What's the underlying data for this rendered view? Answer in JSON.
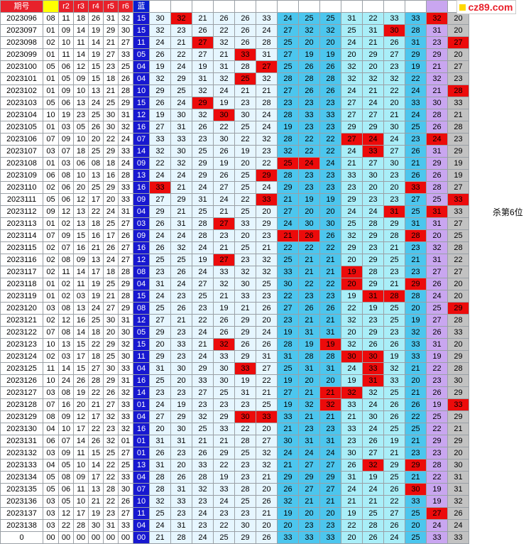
{
  "header": [
    "期号",
    "",
    "r2",
    "r3",
    "r4",
    "r5",
    "r6",
    "蓝",
    "",
    "",
    "",
    "",
    "",
    "",
    "",
    "",
    "",
    "",
    "",
    "",
    "",
    "",
    "",
    ""
  ],
  "logo": "cz89.com",
  "note": "杀第6位",
  "note_row": "2023113",
  "rows": [
    [
      "2023096",
      "08",
      "11",
      "18",
      "26",
      "31",
      "32",
      "15",
      "30",
      "32",
      "21",
      "26",
      "26",
      "33",
      "24",
      "25",
      "25",
      "31",
      "22",
      "33",
      "33",
      "32",
      "20"
    ],
    [
      "2023097",
      "01",
      "09",
      "14",
      "19",
      "29",
      "30",
      "15",
      "32",
      "23",
      "26",
      "22",
      "26",
      "24",
      "27",
      "32",
      "32",
      "25",
      "31",
      "30",
      "28",
      "31",
      "20"
    ],
    [
      "2023098",
      "02",
      "10",
      "11",
      "14",
      "21",
      "27",
      "11",
      "24",
      "21",
      "27",
      "32",
      "26",
      "28",
      "25",
      "20",
      "20",
      "24",
      "21",
      "26",
      "31",
      "23",
      "27"
    ],
    [
      "2023099",
      "01",
      "11",
      "14",
      "19",
      "27",
      "33",
      "05",
      "26",
      "22",
      "27",
      "21",
      "33",
      "31",
      "27",
      "19",
      "19",
      "20",
      "29",
      "27",
      "29",
      "29",
      "20"
    ],
    [
      "2023100",
      "05",
      "06",
      "12",
      "15",
      "23",
      "25",
      "04",
      "19",
      "24",
      "19",
      "31",
      "28",
      "27",
      "25",
      "26",
      "26",
      "32",
      "20",
      "23",
      "19",
      "21",
      "27"
    ],
    [
      "2023101",
      "01",
      "05",
      "09",
      "15",
      "18",
      "26",
      "04",
      "32",
      "29",
      "31",
      "32",
      "25",
      "32",
      "28",
      "28",
      "28",
      "32",
      "32",
      "32",
      "22",
      "32",
      "23"
    ],
    [
      "2023102",
      "01",
      "09",
      "10",
      "13",
      "21",
      "28",
      "10",
      "29",
      "25",
      "32",
      "24",
      "21",
      "21",
      "27",
      "26",
      "26",
      "24",
      "21",
      "22",
      "24",
      "21",
      "28"
    ],
    [
      "2023103",
      "05",
      "06",
      "13",
      "24",
      "25",
      "29",
      "15",
      "26",
      "24",
      "29",
      "19",
      "23",
      "28",
      "23",
      "23",
      "23",
      "27",
      "24",
      "20",
      "33",
      "30",
      "33"
    ],
    [
      "2023104",
      "10",
      "19",
      "23",
      "25",
      "30",
      "31",
      "12",
      "19",
      "30",
      "32",
      "30",
      "30",
      "24",
      "28",
      "33",
      "33",
      "27",
      "27",
      "21",
      "24",
      "28",
      "21"
    ],
    [
      "2023105",
      "01",
      "03",
      "05",
      "26",
      "30",
      "32",
      "16",
      "27",
      "31",
      "26",
      "22",
      "25",
      "24",
      "19",
      "23",
      "23",
      "29",
      "29",
      "30",
      "25",
      "26",
      "28"
    ],
    [
      "2023106",
      "07",
      "09",
      "10",
      "20",
      "22",
      "24",
      "07",
      "33",
      "33",
      "23",
      "30",
      "22",
      "32",
      "28",
      "22",
      "22",
      "27",
      "24",
      "24",
      "23",
      "24",
      "23"
    ],
    [
      "2023107",
      "03",
      "07",
      "18",
      "25",
      "29",
      "33",
      "14",
      "32",
      "30",
      "25",
      "26",
      "19",
      "23",
      "32",
      "22",
      "22",
      "24",
      "33",
      "27",
      "26",
      "31",
      "29"
    ],
    [
      "2023108",
      "01",
      "03",
      "06",
      "08",
      "18",
      "24",
      "09",
      "22",
      "32",
      "29",
      "19",
      "20",
      "22",
      "25",
      "24",
      "24",
      "21",
      "27",
      "30",
      "21",
      "29",
      "19"
    ],
    [
      "2023109",
      "06",
      "08",
      "10",
      "13",
      "16",
      "28",
      "13",
      "24",
      "24",
      "29",
      "26",
      "25",
      "29",
      "28",
      "23",
      "23",
      "33",
      "30",
      "23",
      "26",
      "26",
      "19"
    ],
    [
      "2023110",
      "02",
      "06",
      "20",
      "25",
      "29",
      "33",
      "16",
      "33",
      "21",
      "24",
      "27",
      "25",
      "24",
      "29",
      "23",
      "23",
      "23",
      "20",
      "20",
      "33",
      "28",
      "27"
    ],
    [
      "2023111",
      "05",
      "06",
      "12",
      "17",
      "20",
      "33",
      "09",
      "27",
      "29",
      "31",
      "24",
      "22",
      "33",
      "21",
      "19",
      "19",
      "29",
      "23",
      "23",
      "27",
      "25",
      "33"
    ],
    [
      "2023112",
      "09",
      "12",
      "13",
      "22",
      "24",
      "31",
      "04",
      "29",
      "21",
      "25",
      "21",
      "25",
      "20",
      "27",
      "20",
      "20",
      "24",
      "24",
      "31",
      "25",
      "31",
      "33"
    ],
    [
      "2023113",
      "01",
      "02",
      "13",
      "18",
      "25",
      "27",
      "03",
      "26",
      "31",
      "28",
      "27",
      "33",
      "29",
      "24",
      "30",
      "30",
      "25",
      "28",
      "29",
      "31",
      "31",
      "27"
    ],
    [
      "2023114",
      "07",
      "09",
      "15",
      "16",
      "17",
      "26",
      "09",
      "24",
      "24",
      "28",
      "23",
      "20",
      "23",
      "21",
      "26",
      "26",
      "32",
      "29",
      "28",
      "28",
      "20",
      "25"
    ],
    [
      "2023115",
      "02",
      "07",
      "16",
      "21",
      "26",
      "27",
      "16",
      "26",
      "32",
      "24",
      "21",
      "25",
      "21",
      "22",
      "22",
      "22",
      "29",
      "23",
      "21",
      "23",
      "32",
      "28"
    ],
    [
      "2023116",
      "02",
      "08",
      "09",
      "13",
      "24",
      "27",
      "12",
      "25",
      "25",
      "19",
      "27",
      "23",
      "32",
      "25",
      "21",
      "21",
      "20",
      "29",
      "25",
      "21",
      "31",
      "22"
    ],
    [
      "2023117",
      "02",
      "11",
      "14",
      "17",
      "18",
      "28",
      "08",
      "23",
      "26",
      "24",
      "33",
      "32",
      "32",
      "33",
      "21",
      "21",
      "19",
      "28",
      "23",
      "23",
      "27",
      "27"
    ],
    [
      "2023118",
      "01",
      "02",
      "11",
      "19",
      "25",
      "29",
      "04",
      "31",
      "24",
      "27",
      "32",
      "30",
      "25",
      "30",
      "22",
      "22",
      "20",
      "29",
      "21",
      "29",
      "26",
      "20"
    ],
    [
      "2023119",
      "01",
      "02",
      "03",
      "19",
      "21",
      "28",
      "15",
      "24",
      "23",
      "25",
      "21",
      "33",
      "23",
      "22",
      "23",
      "23",
      "19",
      "31",
      "28",
      "28",
      "24",
      "20"
    ],
    [
      "2023120",
      "03",
      "08",
      "13",
      "24",
      "27",
      "29",
      "08",
      "25",
      "26",
      "23",
      "19",
      "21",
      "26",
      "27",
      "26",
      "26",
      "22",
      "19",
      "25",
      "20",
      "25",
      "29"
    ],
    [
      "2023121",
      "02",
      "12",
      "16",
      "25",
      "30",
      "31",
      "12",
      "27",
      "21",
      "22",
      "26",
      "29",
      "20",
      "23",
      "21",
      "21",
      "32",
      "23",
      "25",
      "19",
      "27",
      "28"
    ],
    [
      "2023122",
      "07",
      "08",
      "14",
      "18",
      "20",
      "30",
      "05",
      "29",
      "23",
      "24",
      "26",
      "29",
      "24",
      "19",
      "31",
      "31",
      "20",
      "29",
      "23",
      "32",
      "26",
      "33"
    ],
    [
      "2023123",
      "10",
      "13",
      "15",
      "22",
      "29",
      "32",
      "15",
      "20",
      "33",
      "21",
      "32",
      "26",
      "26",
      "28",
      "19",
      "19",
      "32",
      "26",
      "26",
      "33",
      "31",
      "20"
    ],
    [
      "2023124",
      "02",
      "03",
      "17",
      "18",
      "25",
      "30",
      "11",
      "29",
      "23",
      "24",
      "33",
      "29",
      "31",
      "31",
      "28",
      "28",
      "30",
      "30",
      "19",
      "33",
      "19",
      "29"
    ],
    [
      "2023125",
      "11",
      "14",
      "15",
      "27",
      "30",
      "33",
      "04",
      "31",
      "30",
      "29",
      "30",
      "33",
      "27",
      "25",
      "31",
      "31",
      "24",
      "33",
      "32",
      "21",
      "22",
      "28"
    ],
    [
      "2023126",
      "10",
      "24",
      "26",
      "28",
      "29",
      "31",
      "16",
      "25",
      "20",
      "33",
      "30",
      "19",
      "22",
      "19",
      "20",
      "20",
      "19",
      "31",
      "33",
      "20",
      "23",
      "30"
    ],
    [
      "2023127",
      "03",
      "08",
      "19",
      "22",
      "26",
      "32",
      "14",
      "23",
      "23",
      "27",
      "25",
      "31",
      "21",
      "27",
      "21",
      "21",
      "32",
      "32",
      "25",
      "21",
      "26",
      "29"
    ],
    [
      "2023128",
      "07",
      "16",
      "20",
      "21",
      "27",
      "33",
      "01",
      "24",
      "19",
      "23",
      "23",
      "23",
      "25",
      "19",
      "32",
      "32",
      "33",
      "24",
      "26",
      "26",
      "19",
      "33"
    ],
    [
      "2023129",
      "08",
      "09",
      "12",
      "17",
      "32",
      "33",
      "04",
      "27",
      "29",
      "32",
      "29",
      "30",
      "33",
      "33",
      "21",
      "21",
      "21",
      "30",
      "26",
      "22",
      "25",
      "29"
    ],
    [
      "2023130",
      "04",
      "10",
      "17",
      "22",
      "23",
      "32",
      "16",
      "20",
      "30",
      "25",
      "33",
      "22",
      "20",
      "21",
      "23",
      "23",
      "33",
      "24",
      "25",
      "25",
      "22",
      "21"
    ],
    [
      "2023131",
      "06",
      "07",
      "14",
      "26",
      "32",
      "01",
      "01",
      "31",
      "31",
      "21",
      "21",
      "28",
      "27",
      "30",
      "31",
      "31",
      "23",
      "26",
      "19",
      "21",
      "29",
      "29"
    ],
    [
      "2023132",
      "03",
      "09",
      "11",
      "15",
      "25",
      "27",
      "01",
      "26",
      "23",
      "26",
      "29",
      "25",
      "32",
      "24",
      "24",
      "24",
      "30",
      "27",
      "21",
      "23",
      "23",
      "20"
    ],
    [
      "2023133",
      "04",
      "05",
      "10",
      "14",
      "22",
      "25",
      "13",
      "31",
      "20",
      "33",
      "22",
      "23",
      "32",
      "21",
      "27",
      "27",
      "26",
      "32",
      "29",
      "29",
      "28",
      "30"
    ],
    [
      "2023134",
      "05",
      "08",
      "09",
      "17",
      "22",
      "33",
      "04",
      "28",
      "26",
      "28",
      "19",
      "23",
      "21",
      "29",
      "29",
      "29",
      "31",
      "19",
      "25",
      "21",
      "22",
      "31"
    ],
    [
      "2023135",
      "05",
      "06",
      "11",
      "13",
      "28",
      "30",
      "07",
      "28",
      "31",
      "32",
      "33",
      "28",
      "20",
      "26",
      "27",
      "27",
      "24",
      "24",
      "26",
      "30",
      "19",
      "31"
    ],
    [
      "2023136",
      "03",
      "05",
      "10",
      "21",
      "22",
      "26",
      "10",
      "32",
      "33",
      "23",
      "24",
      "25",
      "26",
      "32",
      "21",
      "21",
      "21",
      "21",
      "22",
      "33",
      "19",
      "32"
    ],
    [
      "2023137",
      "03",
      "12",
      "17",
      "19",
      "23",
      "27",
      "11",
      "25",
      "23",
      "24",
      "23",
      "23",
      "21",
      "19",
      "20",
      "20",
      "19",
      "25",
      "27",
      "25",
      "27",
      "26"
    ],
    [
      "2023138",
      "03",
      "22",
      "28",
      "30",
      "31",
      "33",
      "04",
      "24",
      "31",
      "23",
      "22",
      "30",
      "20",
      "20",
      "23",
      "23",
      "22",
      "28",
      "26",
      "20",
      "24",
      "24"
    ],
    [
      "0",
      "00",
      "00",
      "00",
      "00",
      "00",
      "00",
      "00",
      "21",
      "28",
      "24",
      "25",
      "29",
      "26",
      "33",
      "33",
      "33",
      "20",
      "26",
      "24",
      "25",
      "33",
      "33"
    ]
  ],
  "hits": [
    [
      0,
      9
    ],
    [
      0,
      21
    ],
    [
      1,
      19
    ],
    [
      2,
      10
    ],
    [
      2,
      22
    ],
    [
      3,
      12
    ],
    [
      4,
      13
    ],
    [
      5,
      12
    ],
    [
      6,
      22
    ],
    [
      7,
      10
    ],
    [
      8,
      11
    ],
    [
      10,
      17
    ],
    [
      10,
      18
    ],
    [
      10,
      21
    ],
    [
      11,
      18
    ],
    [
      12,
      14
    ],
    [
      12,
      15
    ],
    [
      13,
      13
    ],
    [
      14,
      8
    ],
    [
      14,
      20
    ],
    [
      15,
      13
    ],
    [
      15,
      22
    ],
    [
      16,
      19
    ],
    [
      16,
      21
    ],
    [
      17,
      11
    ],
    [
      18,
      14
    ],
    [
      18,
      15
    ],
    [
      18,
      20
    ],
    [
      20,
      11
    ],
    [
      21,
      17
    ],
    [
      22,
      17
    ],
    [
      22,
      20
    ],
    [
      23,
      18
    ],
    [
      23,
      19
    ],
    [
      24,
      22
    ],
    [
      27,
      11
    ],
    [
      27,
      16
    ],
    [
      28,
      17
    ],
    [
      28,
      18
    ],
    [
      29,
      12
    ],
    [
      29,
      18
    ],
    [
      30,
      18
    ],
    [
      31,
      16
    ],
    [
      31,
      17
    ],
    [
      32,
      16
    ],
    [
      32,
      22
    ],
    [
      33,
      12
    ],
    [
      33,
      13
    ],
    [
      37,
      18
    ],
    [
      37,
      20
    ],
    [
      39,
      20
    ],
    [
      41,
      21
    ]
  ]
}
